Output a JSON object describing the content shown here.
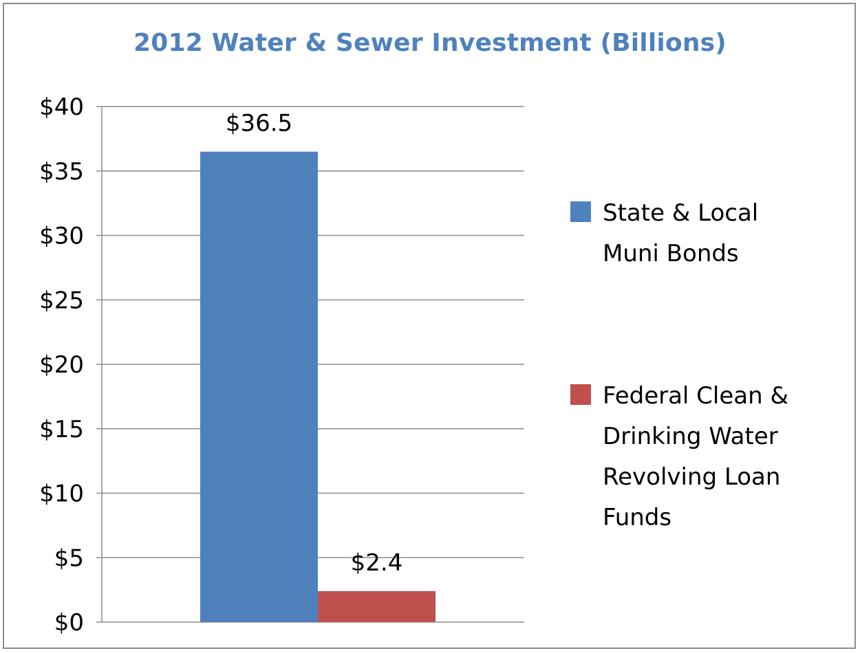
{
  "chart_data": {
    "type": "bar",
    "title": "2012 Water & Sewer Investment (Billions)",
    "xlabel": "",
    "ylabel": "",
    "ylim": [
      0,
      40
    ],
    "ytick_step": 5,
    "ytick_labels": [
      "$0",
      "$5",
      "$10",
      "$15",
      "$20",
      "$25",
      "$30",
      "$35",
      "$40"
    ],
    "grid": true,
    "legend_position": "right",
    "series": [
      {
        "name": "State & Local Muni Bonds",
        "legend_lines": [
          "State & Local",
          "Muni Bonds"
        ],
        "value": 36.5,
        "value_label": "$36.5",
        "color": "#4f81bd"
      },
      {
        "name": "Federal Clean & Drinking Water Revolving Loan Funds",
        "legend_lines": [
          "Federal Clean &",
          "Drinking Water",
          "Revolving Loan",
          "Funds"
        ],
        "value": 2.4,
        "value_label": "$2.4",
        "color": "#c0504d"
      }
    ]
  }
}
